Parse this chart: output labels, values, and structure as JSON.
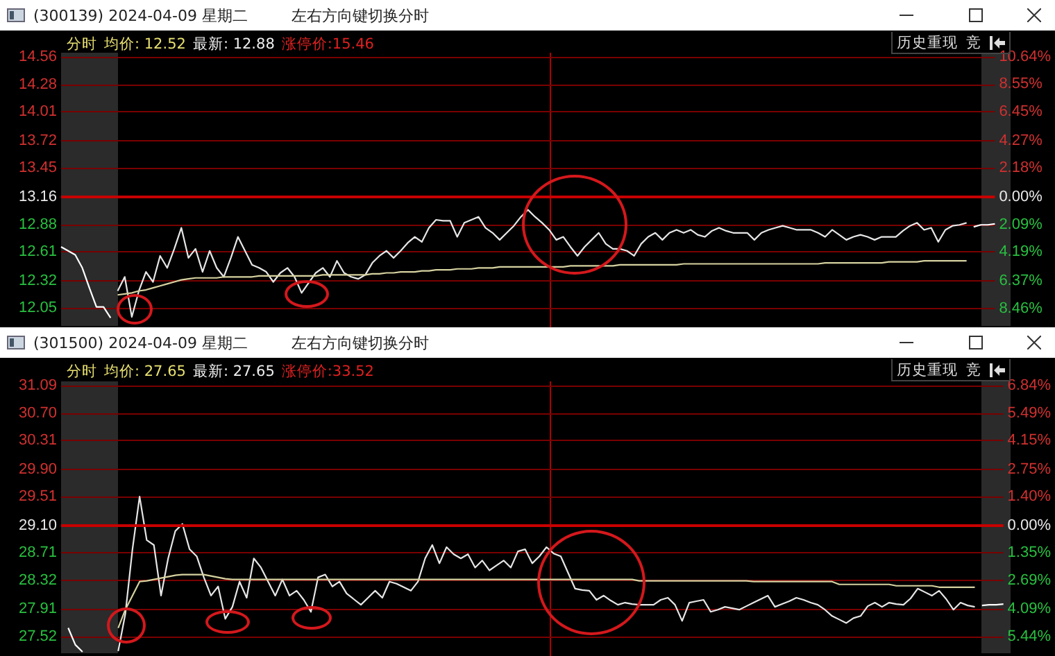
{
  "chart_data": [
    {
      "type": "line",
      "title": "(300139) 2024-04-09 星期二",
      "subtitle": "左右方向键切换分时",
      "annotations": [
        "分时",
        "均价: 12.52",
        "最新: 12.88",
        "涨停价:15.46",
        "历史重现",
        "竞"
      ],
      "categories": [
        null,
        null,
        null,
        null,
        null,
        null,
        null,
        null,
        null,
        null,
        null,
        null,
        null,
        null,
        null,
        null,
        null,
        null,
        null,
        null,
        null,
        null,
        null,
        null,
        null,
        null,
        null,
        null,
        null,
        null,
        null,
        null,
        null,
        null,
        null,
        null,
        null,
        null,
        null,
        null,
        null,
        null,
        null,
        null,
        null,
        null,
        null,
        null,
        null,
        null,
        null,
        null,
        null,
        null,
        null,
        null,
        null,
        null,
        null,
        null,
        null,
        null,
        null,
        null,
        null,
        null,
        null,
        null,
        null,
        null,
        null,
        null,
        null,
        null,
        null,
        null,
        null,
        null,
        null,
        null,
        null,
        null,
        null,
        null,
        null,
        null,
        null,
        null,
        null,
        null,
        null,
        null,
        null,
        null,
        null,
        null,
        null,
        null,
        null,
        null,
        null,
        null,
        null,
        null,
        null,
        null,
        null,
        null,
        null,
        null,
        null,
        null,
        null,
        null,
        null,
        null,
        null,
        null,
        null,
        null,
        null,
        null,
        null,
        null,
        null,
        null,
        null,
        null,
        null,
        null,
        null,
        null,
        null
      ],
      "series": [
        {
          "color": "#ffffff",
          "values": [
            12.66,
            12.62,
            12.58,
            12.45,
            12.25,
            12.06,
            12.06,
            11.95,
            null,
            null,
            null,
            null,
            null,
            null,
            null,
            null,
            null,
            null,
            null,
            null,
            null,
            null,
            null,
            null,
            null,
            null,
            null,
            null,
            null,
            null,
            null,
            null,
            null,
            null,
            null,
            null,
            null,
            null,
            null,
            null,
            null,
            null,
            null,
            null,
            null,
            null,
            null,
            null,
            null,
            null,
            null,
            null,
            null,
            null,
            null,
            null,
            null,
            null,
            null,
            null,
            null,
            null,
            null,
            null,
            null,
            null,
            null,
            null,
            null,
            null,
            null,
            null,
            null,
            null,
            null,
            null,
            null,
            null,
            null,
            null,
            null,
            null,
            null,
            null,
            null,
            null,
            null,
            null,
            null,
            null,
            null,
            null,
            null,
            null,
            null,
            null,
            null,
            null,
            null,
            null,
            null,
            null,
            null,
            null,
            null,
            null,
            null,
            null,
            null,
            null,
            null,
            null,
            null,
            null,
            null,
            null,
            null,
            null,
            null,
            null,
            null,
            null,
            null,
            null,
            null,
            null,
            null,
            null,
            null,
            null,
            null,
            null,
            null
          ]
        },
        {
          "color": "#e6e6e6",
          "values": [
            null,
            null,
            null,
            null,
            null,
            null,
            null,
            null,
            12.22,
            12.36,
            11.96,
            12.22,
            12.41,
            12.31,
            12.57,
            12.45,
            12.64,
            12.85,
            12.55,
            12.64,
            12.41,
            12.62,
            12.45,
            12.36,
            12.55,
            12.76,
            12.62,
            12.48,
            12.45,
            12.41,
            12.31,
            12.4,
            12.45,
            12.36,
            12.2,
            12.3,
            12.4,
            12.45,
            12.36,
            12.52,
            12.4,
            12.36,
            12.34,
            12.38,
            12.5,
            12.57,
            12.62,
            12.55,
            12.62,
            12.7,
            12.76,
            12.71,
            12.85,
            12.93,
            12.92,
            12.92,
            12.76,
            12.9,
            12.93,
            12.96,
            12.85,
            12.8,
            12.73,
            12.8,
            12.87,
            12.96,
            13.03,
            12.96,
            12.9,
            12.83,
            12.73,
            12.76,
            12.66,
            12.57,
            12.66,
            12.73,
            12.8,
            12.69,
            12.64,
            12.64,
            12.62,
            12.57,
            12.69,
            12.76,
            12.8,
            12.73,
            12.8,
            12.83,
            12.8,
            12.83,
            12.78,
            12.76,
            12.82,
            12.85,
            12.82,
            12.8,
            12.8,
            12.8,
            12.73,
            12.8,
            12.83,
            12.85,
            12.87,
            12.85,
            12.83,
            12.83,
            12.83,
            12.8,
            12.76,
            12.83,
            12.78,
            12.73,
            12.76,
            12.78,
            12.76,
            12.73,
            12.76,
            12.76,
            12.76,
            12.82,
            12.87,
            12.9,
            12.83,
            12.85,
            12.71,
            12.83,
            12.87,
            12.88,
            12.9,
            null,
            null,
            null,
            null
          ]
        },
        {
          "color": "#d6d2a0",
          "values": [
            null,
            null,
            null,
            null,
            null,
            null,
            null,
            null,
            12.18,
            12.19,
            12.2,
            12.22,
            12.23,
            12.25,
            12.27,
            12.29,
            12.31,
            12.33,
            12.34,
            12.35,
            12.35,
            12.35,
            12.35,
            12.36,
            12.36,
            12.36,
            12.36,
            12.36,
            12.37,
            12.37,
            12.37,
            12.37,
            12.37,
            12.37,
            12.37,
            12.37,
            12.37,
            12.38,
            12.38,
            12.38,
            12.38,
            12.38,
            12.38,
            12.38,
            12.39,
            12.39,
            12.4,
            12.4,
            12.41,
            12.41,
            12.41,
            12.42,
            12.42,
            12.43,
            12.43,
            12.43,
            12.44,
            12.44,
            12.44,
            12.45,
            12.45,
            12.45,
            12.46,
            12.46,
            12.46,
            12.46,
            12.46,
            12.46,
            12.46,
            12.46,
            12.46,
            12.46,
            12.47,
            12.47,
            12.47,
            12.47,
            12.47,
            12.47,
            12.47,
            12.48,
            12.48,
            12.48,
            12.48,
            12.48,
            12.48,
            12.48,
            12.48,
            12.48,
            12.49,
            12.49,
            12.49,
            12.49,
            12.49,
            12.49,
            12.49,
            12.49,
            12.49,
            12.49,
            12.49,
            12.49,
            12.49,
            12.49,
            12.49,
            12.49,
            12.49,
            12.49,
            12.49,
            12.49,
            12.5,
            12.5,
            12.5,
            12.5,
            12.5,
            12.5,
            12.5,
            12.5,
            12.5,
            12.51,
            12.51,
            12.51,
            12.51,
            12.51,
            12.52,
            12.52,
            12.52,
            12.52,
            12.52,
            12.52,
            12.52,
            null,
            null,
            null,
            null
          ]
        },
        {
          "color": "#ffffff",
          "values": [
            null,
            null,
            null,
            null,
            null,
            null,
            null,
            null,
            null,
            null,
            null,
            null,
            null,
            null,
            null,
            null,
            null,
            null,
            null,
            null,
            null,
            null,
            null,
            null,
            null,
            null,
            null,
            null,
            null,
            null,
            null,
            null,
            null,
            null,
            null,
            null,
            null,
            null,
            null,
            null,
            null,
            null,
            null,
            null,
            null,
            null,
            null,
            null,
            null,
            null,
            null,
            null,
            null,
            null,
            null,
            null,
            null,
            null,
            null,
            null,
            null,
            null,
            null,
            null,
            null,
            null,
            null,
            null,
            null,
            null,
            null,
            null,
            null,
            null,
            null,
            null,
            null,
            null,
            null,
            null,
            null,
            null,
            null,
            null,
            null,
            null,
            null,
            null,
            null,
            null,
            null,
            null,
            null,
            null,
            null,
            null,
            null,
            null,
            null,
            null,
            null,
            null,
            null,
            null,
            null,
            null,
            null,
            null,
            null,
            null,
            null,
            null,
            null,
            null,
            null,
            null,
            null,
            null,
            null,
            null,
            null,
            null,
            null,
            null,
            null,
            null,
            null,
            null,
            null,
            12.86,
            12.88,
            12.88,
            12.89
          ]
        }
      ],
      "ylim": [
        11.87,
        14.6
      ],
      "yticks": [
        14.56,
        14.28,
        14.01,
        13.72,
        13.45,
        13.16,
        12.88,
        12.61,
        12.32,
        12.05
      ],
      "y2lim": [
        -9.8,
        10.94
      ],
      "y2ticks": [
        {
          "value": 10.64,
          "label": "10.64%"
        },
        {
          "value": 8.55,
          "label": "8.55%"
        },
        {
          "value": 6.45,
          "label": "6.45%"
        },
        {
          "value": 4.27,
          "label": "4.27%"
        },
        {
          "value": 2.18,
          "label": "2.18%"
        },
        {
          "value": 0,
          "label": "0.00%"
        },
        {
          "value": -2.09,
          "label": "2.09%"
        },
        {
          "value": -4.19,
          "label": "4.19%"
        },
        {
          "value": -6.37,
          "label": "6.37%"
        },
        {
          "value": -8.46,
          "label": "8.46%"
        }
      ],
      "tick_labels": "y",
      "grid": "y",
      "ref_lines": [
        {
          "axis": "y",
          "value": 13.16,
          "color": "#c80000"
        }
      ]
    },
    {
      "type": "line",
      "title": "(301500) 2024-04-09 星期二",
      "subtitle": "左右方向键切换分时",
      "annotations": [
        "分时",
        "均价: 27.65",
        "最新: 27.65",
        "涨停价:33.52",
        "历史重现",
        "竞"
      ],
      "categories": [
        null,
        null,
        null,
        null,
        null,
        null,
        null,
        null,
        null,
        null,
        null,
        null,
        null,
        null,
        null,
        null,
        null,
        null,
        null,
        null,
        null,
        null,
        null,
        null,
        null,
        null,
        null,
        null,
        null,
        null,
        null,
        null,
        null,
        null,
        null,
        null,
        null,
        null,
        null,
        null,
        null,
        null,
        null,
        null,
        null,
        null,
        null,
        null,
        null,
        null,
        null,
        null,
        null,
        null,
        null,
        null,
        null,
        null,
        null,
        null,
        null,
        null,
        null,
        null,
        null,
        null,
        null,
        null,
        null,
        null,
        null,
        null,
        null,
        null,
        null,
        null,
        null,
        null,
        null,
        null,
        null,
        null,
        null,
        null,
        null,
        null,
        null,
        null,
        null,
        null,
        null,
        null,
        null,
        null,
        null,
        null,
        null,
        null,
        null,
        null,
        null,
        null,
        null,
        null,
        null,
        null,
        null,
        null,
        null,
        null,
        null,
        null,
        null,
        null,
        null,
        null,
        null,
        null,
        null,
        null,
        null,
        null,
        null,
        null,
        null,
        null,
        null,
        null,
        null,
        null,
        null,
        null,
        null
      ],
      "series": [
        {
          "color": "#ffffff",
          "values": [
            null,
            27.64,
            27.4,
            27.3,
            null,
            null,
            null,
            null,
            null,
            null,
            null,
            null,
            null,
            null,
            null,
            null,
            null,
            null,
            null,
            null,
            null,
            null,
            null,
            null,
            null,
            null,
            null,
            null,
            null,
            null,
            null,
            null,
            null,
            null,
            null,
            null,
            null,
            null,
            null,
            null,
            null,
            null,
            null,
            null,
            null,
            null,
            null,
            null,
            null,
            null,
            null,
            null,
            null,
            null,
            null,
            null,
            null,
            null,
            null,
            null,
            null,
            null,
            null,
            null,
            null,
            null,
            null,
            null,
            null,
            null,
            null,
            null,
            null,
            null,
            null,
            null,
            null,
            null,
            null,
            null,
            null,
            null,
            null,
            null,
            null,
            null,
            null,
            null,
            null,
            null,
            null,
            null,
            null,
            null,
            null,
            null,
            null,
            null,
            null,
            null,
            null,
            null,
            null,
            null,
            null,
            null,
            null,
            null,
            null,
            null,
            null,
            null,
            null,
            null,
            null,
            null,
            null,
            null,
            null,
            null,
            null,
            null,
            null,
            null,
            null,
            null,
            null,
            null,
            null,
            null,
            null,
            null,
            null
          ]
        },
        {
          "color": "#e6e6e6",
          "values": [
            null,
            null,
            null,
            null,
            null,
            null,
            null,
            null,
            27.31,
            27.84,
            28.76,
            29.51,
            28.89,
            28.82,
            28.1,
            28.63,
            29.02,
            29.12,
            28.76,
            28.66,
            28.36,
            28.1,
            28.23,
            27.77,
            27.94,
            28.3,
            28.07,
            28.63,
            28.5,
            28.3,
            28.1,
            28.33,
            28.1,
            28.17,
            28.04,
            27.87,
            28.36,
            28.4,
            28.23,
            28.3,
            28.13,
            28.05,
            27.97,
            28.07,
            28.17,
            28.07,
            28.3,
            28.27,
            28.22,
            28.17,
            28.3,
            28.63,
            28.82,
            28.56,
            28.79,
            28.69,
            28.63,
            28.69,
            28.5,
            28.6,
            28.46,
            28.53,
            28.6,
            28.5,
            28.73,
            28.76,
            28.56,
            28.66,
            28.79,
            28.7,
            28.66,
            28.43,
            28.2,
            28.18,
            28.17,
            28.04,
            28.1,
            28.03,
            27.97,
            28.0,
            27.98,
            27.97,
            27.97,
            27.97,
            28.04,
            28.07,
            27.97,
            27.74,
            28.0,
            28.02,
            28.04,
            27.87,
            27.9,
            27.94,
            27.92,
            27.9,
            27.95,
            28.0,
            28.05,
            28.1,
            27.94,
            27.98,
            28.02,
            28.07,
            28.04,
            28.0,
            27.97,
            27.9,
            27.81,
            27.76,
            27.71,
            27.78,
            27.81,
            27.95,
            28.0,
            27.94,
            28.0,
            27.98,
            27.97,
            28.06,
            28.2,
            28.15,
            28.1,
            28.17,
            28.05,
            27.9,
            28.0,
            27.96,
            27.94,
            null,
            null,
            null,
            null
          ]
        },
        {
          "color": "#d6d2a0",
          "values": [
            null,
            null,
            null,
            null,
            null,
            null,
            null,
            null,
            27.64,
            27.9,
            28.1,
            28.3,
            28.31,
            28.33,
            28.35,
            28.37,
            28.39,
            28.4,
            28.4,
            28.4,
            28.4,
            28.38,
            28.36,
            28.34,
            28.33,
            28.33,
            28.33,
            28.33,
            28.33,
            28.33,
            28.33,
            28.33,
            28.33,
            28.33,
            28.33,
            28.33,
            28.33,
            28.33,
            28.33,
            28.33,
            28.33,
            28.33,
            28.33,
            28.33,
            28.33,
            28.33,
            28.33,
            28.33,
            28.33,
            28.33,
            28.33,
            28.33,
            28.33,
            28.33,
            28.33,
            28.33,
            28.33,
            28.33,
            28.33,
            28.33,
            28.33,
            28.33,
            28.33,
            28.33,
            28.33,
            28.33,
            28.33,
            28.33,
            28.33,
            28.33,
            28.33,
            28.33,
            28.33,
            28.33,
            28.33,
            28.33,
            28.33,
            28.33,
            28.33,
            28.33,
            28.33,
            28.31,
            28.31,
            28.31,
            28.31,
            28.31,
            28.31,
            28.31,
            28.31,
            28.31,
            28.31,
            28.31,
            28.31,
            28.31,
            28.31,
            28.31,
            28.31,
            28.3,
            28.3,
            28.3,
            28.3,
            28.3,
            28.3,
            28.3,
            28.3,
            28.3,
            28.3,
            28.3,
            28.3,
            28.26,
            28.26,
            28.26,
            28.26,
            28.26,
            28.26,
            28.26,
            28.26,
            28.24,
            28.24,
            28.24,
            28.24,
            28.24,
            28.24,
            28.22,
            28.22,
            28.22,
            28.22,
            28.22,
            28.22,
            null,
            null,
            null,
            null
          ]
        },
        {
          "color": "#ffffff",
          "values": [
            null,
            null,
            null,
            null,
            null,
            null,
            null,
            null,
            null,
            null,
            null,
            null,
            null,
            null,
            null,
            null,
            null,
            null,
            null,
            null,
            null,
            null,
            null,
            null,
            null,
            null,
            null,
            null,
            null,
            null,
            null,
            null,
            null,
            null,
            null,
            null,
            null,
            null,
            null,
            null,
            null,
            null,
            null,
            null,
            null,
            null,
            null,
            null,
            null,
            null,
            null,
            null,
            null,
            null,
            null,
            null,
            null,
            null,
            null,
            null,
            null,
            null,
            null,
            null,
            null,
            null,
            null,
            null,
            null,
            null,
            null,
            null,
            null,
            null,
            null,
            null,
            null,
            null,
            null,
            null,
            null,
            null,
            null,
            null,
            null,
            null,
            null,
            null,
            null,
            null,
            null,
            null,
            null,
            null,
            null,
            null,
            null,
            null,
            null,
            null,
            null,
            null,
            null,
            null,
            null,
            null,
            null,
            null,
            null,
            null,
            null,
            null,
            null,
            null,
            null,
            null,
            null,
            null,
            null,
            null,
            null,
            null,
            null,
            null,
            null,
            null,
            null,
            null,
            null,
            27.96,
            27.97,
            27.97,
            27.98
          ]
        }
      ],
      "ylim": [
        27.28,
        31.15
      ],
      "yticks": [
        31.09,
        {
          "value": 30.7,
          "label": "30.70"
        },
        30.31,
        {
          "value": 29.9,
          "label": "29.90"
        },
        29.51,
        {
          "value": 29.1,
          "label": "29.10"
        },
        28.71,
        28.32,
        27.91,
        27.52
      ],
      "y2lim": [
        -6.25,
        7.04
      ],
      "y2ticks": [
        {
          "value": 6.84,
          "label": "6.84%"
        },
        {
          "value": 5.49,
          "label": "5.49%"
        },
        {
          "value": 4.15,
          "label": "4.15%"
        },
        {
          "value": 2.75,
          "label": "2.75%"
        },
        {
          "value": 1.4,
          "label": "1.40%"
        },
        {
          "value": 0,
          "label": "0.00%"
        },
        {
          "value": -1.35,
          "label": "1.35%"
        },
        {
          "value": -2.69,
          "label": "2.69%"
        },
        {
          "value": -4.09,
          "label": "4.09%"
        },
        {
          "value": -5.44,
          "label": "5.44%"
        }
      ],
      "tick_labels": "y",
      "grid": "y",
      "ref_lines": [
        {
          "axis": "y",
          "value": 29.1,
          "color": "#c80000"
        }
      ]
    }
  ]
}
